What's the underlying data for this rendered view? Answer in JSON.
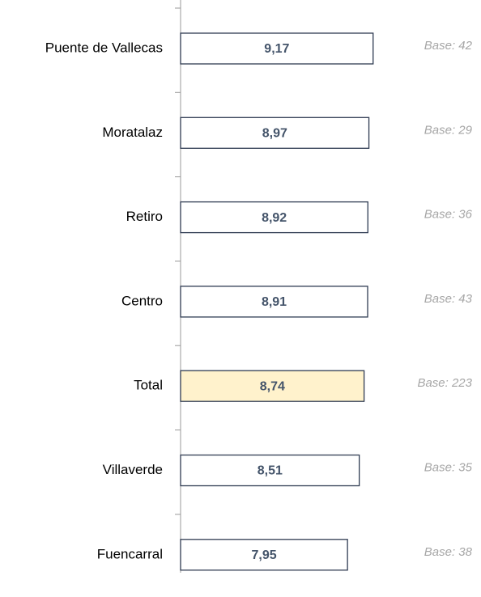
{
  "chart_data": {
    "type": "bar",
    "orientation": "horizontal",
    "categories": [
      "Puente de Vallecas",
      "Moratalaz",
      "Retiro",
      "Centro",
      "Total",
      "Villaverde",
      "Fuencarral"
    ],
    "values": [
      9.17,
      8.97,
      8.92,
      8.91,
      8.74,
      8.51,
      7.95
    ],
    "value_labels": [
      "9,17",
      "8,97",
      "8,92",
      "8,91",
      "8,74",
      "8,51",
      "7,95"
    ],
    "annotations": [
      "Base: 42",
      "Base: 29",
      "Base: 36",
      "Base: 43",
      "Base: 223",
      "Base: 35",
      "Base: 38"
    ],
    "colors": [
      "#ffffff",
      "#ffffff",
      "#ffffff",
      "#ffffff",
      "#fff2cc",
      "#ffffff",
      "#ffffff"
    ],
    "edge_color": "#2f3b52",
    "xlim": [
      0,
      14
    ]
  }
}
